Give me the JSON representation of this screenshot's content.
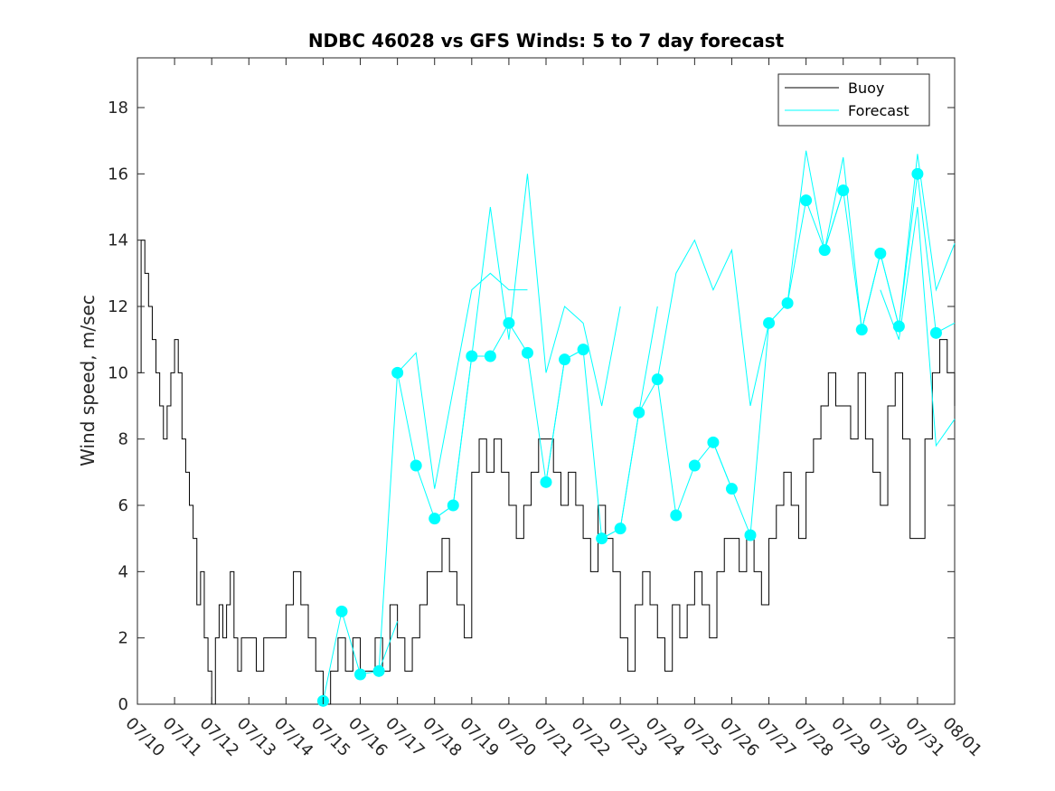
{
  "chart_data": {
    "type": "line",
    "title": "NDBC 46028 vs GFS Winds: 5 to 7 day forecast",
    "xlabel": "",
    "ylabel": "Wind speed, m/sec",
    "ylim": [
      0,
      19.5
    ],
    "xlim_days": [
      0,
      22
    ],
    "x_tick_labels": [
      "07/10",
      "07/11",
      "07/12",
      "07/13",
      "07/14",
      "07/15",
      "07/16",
      "07/17",
      "07/18",
      "07/19",
      "07/20",
      "07/21",
      "07/22",
      "07/23",
      "07/24",
      "07/25",
      "07/26",
      "07/27",
      "07/28",
      "07/29",
      "07/30",
      "07/31",
      "08/01"
    ],
    "y_ticks": [
      0,
      2,
      4,
      6,
      8,
      10,
      12,
      14,
      16,
      18
    ],
    "grid": false,
    "legend": {
      "placement": "top-right",
      "entries": [
        "Buoy",
        "Forecast"
      ]
    },
    "colors": {
      "buoy": "#000000",
      "forecast": "#00ffff"
    },
    "series": [
      {
        "name": "Buoy",
        "x_unit": "days since 07/10",
        "x": [
          0,
          0.1,
          0.2,
          0.3,
          0.4,
          0.5,
          0.6,
          0.7,
          0.8,
          0.9,
          1.0,
          1.1,
          1.2,
          1.3,
          1.4,
          1.5,
          1.6,
          1.7,
          1.8,
          1.9,
          2.0,
          2.1,
          2.2,
          2.3,
          2.4,
          2.5,
          2.6,
          2.7,
          2.8,
          2.9,
          3.0,
          3.2,
          3.4,
          3.6,
          3.8,
          4.0,
          4.2,
          4.4,
          4.6,
          4.8,
          5.0,
          5.2,
          5.4,
          5.6,
          5.8,
          6.0,
          6.2,
          6.4,
          6.6,
          6.8,
          7.0,
          7.2,
          7.4,
          7.6,
          7.8,
          8.0,
          8.2,
          8.4,
          8.6,
          8.8,
          9.0,
          9.2,
          9.4,
          9.6,
          9.8,
          10.0,
          10.2,
          10.4,
          10.6,
          10.8,
          11.0,
          11.2,
          11.4,
          11.6,
          11.8,
          12.0,
          12.2,
          12.4,
          12.6,
          12.8,
          13.0,
          13.2,
          13.4,
          13.6,
          13.8,
          14.0,
          14.2,
          14.4,
          14.6,
          14.8,
          15.0,
          15.2,
          15.4,
          15.6,
          15.8,
          16.0,
          16.2,
          16.4,
          16.6,
          16.8,
          17.0,
          17.2,
          17.4,
          17.6,
          17.8,
          18.0,
          18.2,
          18.4,
          18.6,
          18.8,
          19.0,
          19.2,
          19.4,
          19.6,
          19.8,
          20.0,
          20.2,
          20.4,
          20.6,
          20.8,
          21.0,
          21.2,
          21.4,
          21.6,
          21.8,
          22.0
        ],
        "values": [
          10,
          14,
          13,
          12,
          11,
          10,
          9,
          8,
          9,
          10,
          11,
          10,
          8,
          7,
          6,
          5,
          3,
          4,
          2,
          1,
          0,
          2,
          3,
          2,
          3,
          4,
          2,
          1,
          2,
          2,
          2,
          1,
          2,
          2,
          2,
          3,
          4,
          3,
          2,
          1,
          0,
          1,
          2,
          1,
          2,
          1,
          1,
          2,
          1,
          3,
          2,
          1,
          2,
          3,
          4,
          4,
          5,
          4,
          3,
          2,
          7,
          8,
          7,
          8,
          7,
          6,
          5,
          6,
          7,
          8,
          8,
          7,
          6,
          7,
          6,
          5,
          4,
          6,
          5,
          4,
          2,
          1,
          3,
          4,
          3,
          2,
          1,
          3,
          2,
          3,
          4,
          3,
          2,
          4,
          5,
          5,
          4,
          5,
          4,
          3,
          5,
          6,
          7,
          6,
          5,
          7,
          8,
          9,
          10,
          9,
          9,
          8,
          10,
          8,
          7,
          6,
          9,
          10,
          8,
          5,
          5,
          8,
          10,
          11,
          10,
          9
        ]
      },
      {
        "name": "Forecast",
        "x_unit": "days since 07/10",
        "markers_x": [
          5.0,
          5.5,
          6.0,
          6.5,
          7.0,
          7.5,
          8.0,
          8.5,
          9.0,
          9.5,
          10.0,
          10.5,
          11.0,
          11.5,
          12.0,
          12.5,
          13.0,
          13.5,
          14.0,
          14.5,
          15.0,
          15.5,
          16.0,
          16.5,
          17.0,
          17.5,
          18.0,
          18.5,
          19.0,
          19.5,
          20.0,
          20.5,
          21.0,
          21.5
        ],
        "markers_y": [
          0.1,
          2.8,
          0.9,
          1.0,
          10.0,
          7.2,
          5.6,
          6.0,
          10.5,
          10.5,
          11.5,
          10.6,
          6.7,
          10.4,
          10.7,
          5.0,
          5.3,
          8.8,
          9.8,
          5.7,
          7.2,
          7.9,
          6.5,
          5.1,
          11.5,
          12.1,
          15.2,
          13.7,
          15.5,
          11.3,
          13.6,
          11.4,
          16.0,
          11.2
        ],
        "forecast_runs": [
          {
            "x": [
              5.0,
              5.5,
              6.0,
              6.5,
              7.0
            ],
            "values": [
              0.1,
              2.8,
              0.9,
              1.0,
              2.5
            ]
          },
          {
            "x": [
              6.5,
              7.0,
              7.5,
              8.0,
              8.5,
              9.0
            ],
            "values": [
              1.0,
              10.0,
              7.2,
              5.6,
              6.0,
              10.5
            ]
          },
          {
            "x": [
              7.0,
              7.5,
              8.0,
              8.5,
              9.0,
              9.5,
              10.0,
              10.5
            ],
            "values": [
              10.0,
              10.6,
              6.5,
              9.5,
              12.5,
              13.0,
              12.5,
              12.5
            ]
          },
          {
            "x": [
              8.0,
              8.5,
              9.0,
              9.5,
              10.0,
              10.5,
              11.0,
              11.5,
              12.0
            ],
            "values": [
              5.6,
              6.0,
              10.5,
              10.5,
              11.5,
              10.6,
              6.7,
              10.4,
              10.7
            ]
          },
          {
            "x": [
              9.0,
              9.5,
              10.0,
              10.5,
              11.0,
              11.5,
              12.0,
              12.5,
              13.0
            ],
            "values": [
              10.5,
              15.0,
              11.0,
              16.0,
              10.0,
              12.0,
              11.5,
              9.0,
              12.0
            ]
          },
          {
            "x": [
              11.0,
              11.5,
              12.0,
              12.5,
              13.0,
              13.5,
              14.0
            ],
            "values": [
              6.7,
              10.4,
              10.7,
              5.0,
              5.3,
              8.8,
              12.0
            ]
          },
          {
            "x": [
              12.5,
              13.0,
              13.5,
              14.0,
              14.5,
              15.0,
              15.5,
              16.0
            ],
            "values": [
              5.0,
              5.3,
              8.8,
              9.8,
              5.7,
              7.2,
              7.9,
              6.5
            ]
          },
          {
            "x": [
              14.0,
              14.5,
              15.0,
              15.5,
              16.0,
              16.5,
              17.0
            ],
            "values": [
              9.8,
              13.0,
              14.0,
              12.5,
              13.7,
              9.0,
              11.5
            ]
          },
          {
            "x": [
              15.5,
              16.0,
              16.5,
              17.0,
              17.5,
              18.0,
              18.5,
              19.0
            ],
            "values": [
              7.9,
              6.5,
              5.1,
              11.5,
              12.1,
              15.2,
              13.7,
              15.5
            ]
          },
          {
            "x": [
              17.0,
              17.5,
              18.0,
              18.5,
              19.0,
              19.5,
              20.0
            ],
            "values": [
              11.5,
              12.1,
              16.7,
              13.7,
              16.5,
              11.3,
              13.6
            ]
          },
          {
            "x": [
              18.5,
              19.0,
              19.5,
              20.0,
              20.5,
              21.0,
              21.5,
              22.0
            ],
            "values": [
              13.7,
              15.5,
              11.3,
              13.6,
              11.4,
              16.0,
              11.2,
              11.5
            ]
          },
          {
            "x": [
              19.5,
              20.0,
              20.5,
              21.0,
              21.5,
              22.0
            ],
            "values": [
              11.3,
              13.6,
              11.4,
              16.6,
              12.5,
              13.9
            ]
          },
          {
            "x": [
              20.0,
              20.5,
              21.0,
              21.5,
              22.0
            ],
            "values": [
              12.5,
              11.0,
              15.0,
              7.8,
              8.6
            ]
          }
        ]
      }
    ]
  }
}
